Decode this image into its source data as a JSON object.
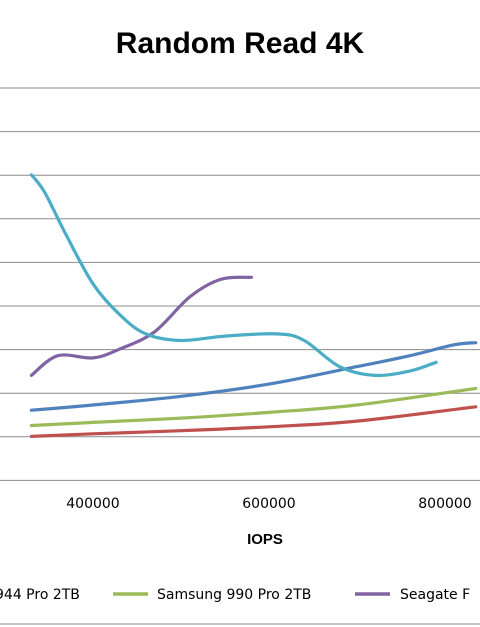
{
  "chart_data": {
    "type": "line",
    "title": "Random Read 4K",
    "xlabel": "IOPS",
    "ylabel": "",
    "x_ticks": [
      400000,
      600000,
      800000
    ],
    "x_tick_labels": [
      "400000",
      "600000",
      "800000"
    ],
    "xlim": [
      330000,
      835000
    ],
    "ylim": [
      0,
      11
    ],
    "grid": "horizontal",
    "legend_position": "bottom",
    "series": [
      {
        "name": "",
        "color": "#4bacc6",
        "x": [
          330000,
          345000,
          370000,
          400000,
          430000,
          460000,
          500000,
          550000,
          610000,
          640000,
          680000,
          720000,
          760000,
          790000
        ],
        "y": [
          7.0,
          6.6,
          5.6,
          4.5,
          3.8,
          3.35,
          3.2,
          3.3,
          3.35,
          3.2,
          2.6,
          2.4,
          2.5,
          2.7
        ]
      },
      {
        "name": "Samsung 990 Pro 2TB",
        "color": "#9bbb59",
        "x": [
          330000,
          400000,
          500000,
          600000,
          700000,
          835000
        ],
        "y": [
          1.25,
          1.32,
          1.42,
          1.55,
          1.72,
          2.1
        ]
      },
      {
        "name": "Seagate F",
        "color": "#8064a2",
        "x": [
          330000,
          360000,
          400000,
          430000,
          470000,
          510000,
          545000,
          580000
        ],
        "y": [
          2.4,
          2.85,
          2.8,
          3.0,
          3.4,
          4.2,
          4.6,
          4.65
        ]
      },
      {
        "name": "",
        "color": "#4f81bd",
        "x": [
          330000,
          400000,
          500000,
          600000,
          700000,
          760000,
          810000,
          835000
        ],
        "y": [
          1.6,
          1.72,
          1.92,
          2.2,
          2.6,
          2.85,
          3.1,
          3.15
        ]
      },
      {
        "name": "",
        "color": "#c0504d",
        "x": [
          330000,
          400000,
          500000,
          600000,
          700000,
          835000
        ],
        "y": [
          1.0,
          1.06,
          1.13,
          1.22,
          1.35,
          1.68
        ]
      }
    ],
    "legend_entries": [
      {
        "label": "944 Pro 2TB",
        "color": "#4f81bd"
      },
      {
        "label": "Samsung 990 Pro 2TB",
        "color": "#9bbb59"
      },
      {
        "label": "Seagate F",
        "color": "#8064a2"
      }
    ]
  }
}
